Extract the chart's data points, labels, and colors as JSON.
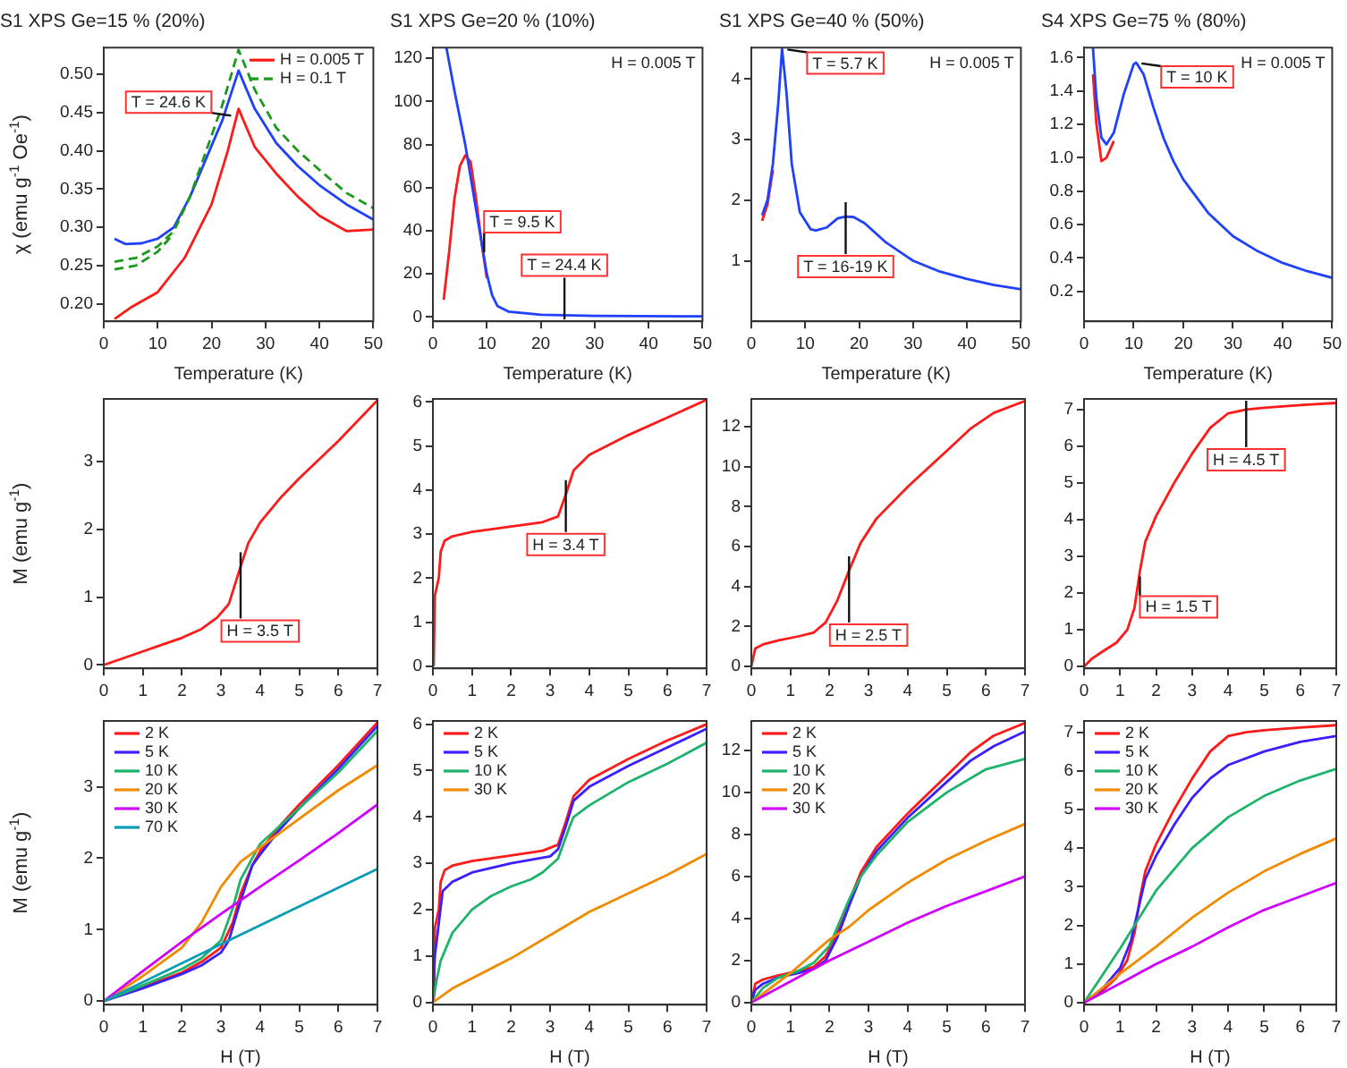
{
  "chart_data": [
    {
      "type": "line",
      "title": "S1 XPS Ge=15 % (20%)",
      "xlabel": "Temperature (K)",
      "ylabel": "χ (emu g$^{-1}$ Oe$^{-1}$)",
      "xlim": [
        0,
        50
      ],
      "xticks": [
        0,
        10,
        20,
        30,
        40,
        50
      ],
      "ylim": [
        0.177,
        0.535
      ],
      "yticks": [
        {
          "value": 0.2,
          "label": "0.20"
        },
        0.25,
        {
          "value": 0.3,
          "label": "0.30"
        },
        0.35,
        {
          "value": 0.4,
          "label": "0.40"
        },
        0.45,
        {
          "value": 0.5,
          "label": "0.50"
        }
      ],
      "grid": false,
      "legend": "top right",
      "annotations": [
        {
          "text": "T = 24.6 K",
          "x": 24.6,
          "y": 0.445
        }
      ],
      "series": [
        {
          "name": "H = 0.005 T",
          "color": "#ff1a1a",
          "x": [
            2,
            5,
            10,
            15,
            20,
            23,
            25,
            28,
            32,
            36,
            40,
            45,
            50
          ],
          "values": [
            0.18,
            0.195,
            0.215,
            0.26,
            0.33,
            0.4,
            0.455,
            0.405,
            0.37,
            0.34,
            0.315,
            0.295,
            0.297
          ]
        },
        {
          "color": "#2040ff",
          "x": [
            2,
            4,
            7,
            10,
            13,
            16,
            19,
            22,
            25,
            28,
            32,
            36,
            40,
            45,
            50
          ],
          "values": [
            0.285,
            0.278,
            0.279,
            0.285,
            0.3,
            0.34,
            0.39,
            0.44,
            0.505,
            0.455,
            0.41,
            0.38,
            0.355,
            0.33,
            0.31
          ]
        },
        {
          "name": "H = 0.1 T",
          "color": "#1a9a1a",
          "line_style": "dashed",
          "x": [
            2,
            6,
            10,
            13,
            16,
            19,
            22,
            25,
            28,
            32,
            36,
            40,
            45,
            50
          ],
          "values": [
            0.255,
            0.26,
            0.275,
            0.295,
            0.34,
            0.4,
            0.46,
            0.532,
            0.48,
            0.43,
            0.4,
            0.375,
            0.345,
            0.325
          ]
        },
        {
          "color": "#1a9a1a",
          "line_style": "dashed",
          "x": [
            2,
            6,
            10,
            13
          ],
          "values": [
            0.245,
            0.25,
            0.268,
            0.292
          ]
        }
      ]
    },
    {
      "type": "line",
      "title": "S1 XPS Ge=20 % (10%)",
      "xlabel": "Temperature (K)",
      "xlim": [
        0,
        50
      ],
      "xticks": [
        0,
        10,
        20,
        30,
        40,
        50
      ],
      "ylim": [
        -2,
        125
      ],
      "yticks": [
        0,
        20,
        40,
        60,
        80,
        100,
        120
      ],
      "grid": false,
      "annotations": [
        "H = 0.005 T",
        {
          "text": "T = 9.5 K",
          "x": 9.5,
          "y": 27.5
        },
        {
          "text": "T = 24.4 K",
          "x": 24.4,
          "y": 0.8
        }
      ],
      "series": [
        {
          "color": "#ff1a1a",
          "x": [
            2,
            3,
            4,
            5,
            6,
            7,
            8,
            9,
            10
          ],
          "values": [
            8,
            30,
            55,
            70,
            75,
            72,
            55,
            35,
            18
          ]
        },
        {
          "color": "#2040ff",
          "x": [
            2.5,
            4,
            6,
            8,
            9,
            10,
            11,
            12,
            14,
            20,
            30,
            50
          ],
          "values": [
            125,
            105,
            80,
            50,
            35,
            20,
            10,
            5,
            2.5,
            1,
            0.5,
            0.3
          ]
        }
      ]
    },
    {
      "type": "line",
      "title": "S1 XPS Ge=40 % (50%)",
      "xlabel": "Temperature (K)",
      "xlim": [
        0,
        50
      ],
      "xticks": [
        0,
        10,
        20,
        30,
        40,
        50
      ],
      "ylim": [
        0,
        4.52
      ],
      "yticks": [
        1,
        2,
        3,
        4
      ],
      "grid": false,
      "annotations": [
        "H = 0.005 T",
        {
          "text": "T = 5.7 K",
          "x": 5.7,
          "y": 4.5
        },
        {
          "text": "T = 16-19 K",
          "x": 17.5,
          "y": 1.73
        }
      ],
      "series": [
        {
          "color": "#ff1a1a",
          "x": [
            2,
            3,
            4
          ],
          "values": [
            1.66,
            1.93,
            2.5
          ]
        },
        {
          "color": "#2040ff",
          "x": [
            2,
            3,
            4,
            5,
            5.7,
            6.5,
            7.5,
            9,
            11,
            12,
            14,
            16,
            17.5,
            19,
            21,
            25,
            30,
            35,
            40,
            45,
            50
          ],
          "values": [
            1.75,
            2.0,
            2.6,
            3.6,
            4.5,
            3.8,
            2.6,
            1.8,
            1.52,
            1.5,
            1.55,
            1.7,
            1.73,
            1.72,
            1.62,
            1.3,
            1.0,
            0.82,
            0.7,
            0.6,
            0.53
          ]
        }
      ]
    },
    {
      "type": "line",
      "title": "S4 XPS Ge=75 % (80%)",
      "xlabel": "Temperature (K)",
      "xlim": [
        0,
        50
      ],
      "xticks": [
        0,
        10,
        20,
        30,
        40,
        50
      ],
      "ylim": [
        0.02,
        1.66
      ],
      "yticks": [
        0.2,
        0.4,
        0.6,
        0.8,
        {
          "value": 1,
          "label": "1.0"
        },
        1.2,
        1.4,
        1.6
      ],
      "grid": false,
      "annotations": [
        "H = 0.005 T",
        {
          "text": "T = 10 K",
          "x": 10.5,
          "y": 1.57
        }
      ],
      "series": [
        {
          "color": "#ff1a1a",
          "x": [
            1.8,
            2.5,
            3.5,
            4.5,
            6
          ],
          "values": [
            1.5,
            1.2,
            0.98,
            1.0,
            1.1
          ]
        },
        {
          "color": "#2040ff",
          "x": [
            1.8,
            2.5,
            3.5,
            4.5,
            6,
            8,
            10,
            10.5,
            12,
            14,
            16,
            18,
            20,
            25,
            30,
            35,
            40,
            45,
            50
          ],
          "values": [
            1.66,
            1.35,
            1.12,
            1.08,
            1.15,
            1.38,
            1.56,
            1.57,
            1.5,
            1.3,
            1.12,
            0.98,
            0.87,
            0.67,
            0.53,
            0.44,
            0.37,
            0.32,
            0.28
          ]
        }
      ]
    },
    {
      "type": "line",
      "ylabel": "M (emu g$^{-1}$)",
      "xlim": [
        0,
        7
      ],
      "xticks": [
        0,
        1,
        2,
        3,
        4,
        5,
        6,
        7
      ],
      "ylim": [
        -0.05,
        3.92
      ],
      "yticks": [
        0,
        1,
        2,
        3
      ],
      "grid": false,
      "annotations": [
        {
          "text": "H = 3.5 T",
          "x": 3.5,
          "y": 1.45
        }
      ],
      "series": [
        {
          "color": "#ff1a1a",
          "x": [
            0,
            1,
            1.5,
            2,
            2.5,
            2.9,
            3.2,
            3.5,
            3.7,
            4,
            4.5,
            5,
            6,
            7
          ],
          "values": [
            0,
            0.2,
            0.3,
            0.4,
            0.53,
            0.7,
            0.9,
            1.45,
            1.8,
            2.1,
            2.45,
            2.75,
            3.3,
            3.9
          ]
        }
      ]
    },
    {
      "type": "line",
      "xlim": [
        0,
        7
      ],
      "xticks": [
        0,
        1,
        2,
        3,
        4,
        5,
        6,
        7
      ],
      "ylim": [
        -0.05,
        6.07
      ],
      "yticks": [
        0,
        1,
        2,
        3,
        4,
        5,
        6
      ],
      "grid": false,
      "annotations": [
        {
          "text": "H = 3.4 T",
          "x": 3.4,
          "y": 3.9
        }
      ],
      "series": [
        {
          "color": "#ff1a1a",
          "x": [
            0.02,
            0.05,
            0.15,
            0.2,
            0.3,
            0.5,
            1,
            2,
            2.8,
            3.2,
            3.4,
            3.6,
            4,
            5,
            6,
            7
          ],
          "values": [
            0,
            1.6,
            2.0,
            2.6,
            2.85,
            2.95,
            3.05,
            3.17,
            3.27,
            3.4,
            3.9,
            4.45,
            4.8,
            5.25,
            5.65,
            6.05
          ]
        }
      ]
    },
    {
      "type": "line",
      "xlim": [
        0,
        7
      ],
      "xticks": [
        0,
        1,
        2,
        3,
        4,
        5,
        6,
        7
      ],
      "ylim": [
        -0.1,
        13.4
      ],
      "yticks": [
        0,
        2,
        4,
        6,
        8,
        10,
        12
      ],
      "grid": false,
      "annotations": [
        {
          "text": "H = 2.5 T",
          "x": 2.5,
          "y": 4.8
        }
      ],
      "series": [
        {
          "color": "#ff1a1a",
          "x": [
            0,
            0.1,
            0.3,
            0.7,
            1.2,
            1.6,
            1.9,
            2.2,
            2.5,
            2.8,
            3.2,
            4,
            5,
            5.6,
            6.2,
            7
          ],
          "values": [
            0,
            0.9,
            1.1,
            1.3,
            1.5,
            1.7,
            2.2,
            3.3,
            4.8,
            6.2,
            7.4,
            9.0,
            10.8,
            11.9,
            12.7,
            13.3
          ]
        }
      ]
    },
    {
      "type": "line",
      "xlim": [
        0,
        7
      ],
      "xticks": [
        0,
        1,
        2,
        3,
        4,
        5,
        6,
        7
      ],
      "ylim": [
        -0.05,
        7.29
      ],
      "yticks": [
        0,
        1,
        2,
        3,
        4,
        5,
        6,
        7
      ],
      "grid": false,
      "annotations": [
        {
          "text": "H = 1.5 T",
          "x": 1.55,
          "y": 2.6
        },
        {
          "text": "H = 4.5 T",
          "x": 4.5,
          "y": 7.0
        }
      ],
      "series": [
        {
          "color": "#ff1a1a",
          "x": [
            0,
            0.2,
            0.5,
            0.9,
            1.2,
            1.4,
            1.55,
            1.7,
            2,
            2.5,
            3,
            3.5,
            4,
            4.5,
            5,
            6,
            7
          ],
          "values": [
            0,
            0.2,
            0.4,
            0.65,
            1.0,
            1.6,
            2.6,
            3.4,
            4.1,
            5.0,
            5.8,
            6.5,
            6.9,
            7.0,
            7.05,
            7.12,
            7.18
          ]
        }
      ]
    },
    {
      "type": "line",
      "xlabel": "H (T)",
      "ylabel": "M (emu g$^{-1}$)",
      "xlim": [
        0,
        7
      ],
      "xticks": [
        0,
        1,
        2,
        3,
        4,
        5,
        6,
        7
      ],
      "ylim": [
        -0.05,
        3.92
      ],
      "yticks": [
        0,
        1,
        2,
        3
      ],
      "grid": false,
      "legend": "top left",
      "series": [
        {
          "name": "2 K",
          "color": "#ff1a1a",
          "x": [
            0,
            1,
            2,
            2.5,
            3,
            3.3,
            3.5,
            3.8,
            4,
            4.5,
            5,
            6,
            7
          ],
          "values": [
            0,
            0.2,
            0.4,
            0.55,
            0.75,
            1.1,
            1.5,
            1.9,
            2.1,
            2.45,
            2.75,
            3.3,
            3.9
          ]
        },
        {
          "name": "5 K",
          "color": "#3a1fff",
          "x": [
            0,
            1,
            2,
            2.5,
            3,
            3.2,
            3.5,
            3.8,
            4,
            4.5,
            5,
            6,
            7
          ],
          "values": [
            0,
            0.18,
            0.38,
            0.5,
            0.68,
            0.85,
            1.4,
            1.9,
            2.05,
            2.4,
            2.7,
            3.25,
            3.85
          ]
        },
        {
          "name": "10 K",
          "color": "#1db36b",
          "x": [
            0,
            1,
            2,
            2.5,
            3,
            3.3,
            3.5,
            3.8,
            4,
            5,
            6,
            7
          ],
          "values": [
            0,
            0.22,
            0.45,
            0.6,
            0.85,
            1.3,
            1.7,
            2.0,
            2.2,
            2.7,
            3.2,
            3.78
          ]
        },
        {
          "name": "20 K",
          "color": "#f08a00",
          "x": [
            0,
            1,
            2,
            2.5,
            3,
            3.5,
            4,
            5,
            6,
            7
          ],
          "values": [
            0,
            0.35,
            0.75,
            1.1,
            1.6,
            1.95,
            2.15,
            2.55,
            2.95,
            3.3
          ]
        },
        {
          "name": "30 K",
          "color": "#d000ff",
          "x": [
            0,
            1,
            2,
            3,
            4,
            5,
            6,
            7
          ],
          "values": [
            0,
            0.42,
            0.83,
            1.22,
            1.6,
            1.97,
            2.35,
            2.75
          ]
        },
        {
          "name": "70 K",
          "color": "#0a9bb5",
          "x": [
            0,
            3.5,
            7
          ],
          "values": [
            0,
            0.93,
            1.85
          ]
        }
      ]
    },
    {
      "type": "line",
      "xlabel": "H (T)",
      "xlim": [
        0,
        7
      ],
      "xticks": [
        0,
        1,
        2,
        3,
        4,
        5,
        6,
        7
      ],
      "ylim": [
        -0.05,
        6.07
      ],
      "yticks": [
        0,
        1,
        2,
        3,
        4,
        5,
        6
      ],
      "grid": false,
      "legend": "top left",
      "series": [
        {
          "name": "2 K",
          "color": "#ff1a1a",
          "x": [
            0.02,
            0.05,
            0.15,
            0.2,
            0.3,
            0.5,
            1,
            2,
            2.8,
            3.2,
            3.4,
            3.6,
            4,
            5,
            6,
            7
          ],
          "values": [
            0,
            1.6,
            2.0,
            2.6,
            2.85,
            2.95,
            3.05,
            3.17,
            3.27,
            3.4,
            3.9,
            4.45,
            4.8,
            5.25,
            5.65,
            6.0
          ]
        },
        {
          "name": "5 K",
          "color": "#3a1fff",
          "x": [
            0,
            0.05,
            0.15,
            0.25,
            0.5,
            1,
            2,
            3,
            3.2,
            3.4,
            3.6,
            4,
            5,
            6,
            7
          ],
          "values": [
            0,
            1.0,
            1.7,
            2.4,
            2.6,
            2.8,
            3.0,
            3.15,
            3.3,
            3.8,
            4.35,
            4.65,
            5.1,
            5.5,
            5.9
          ]
        },
        {
          "name": "10 K",
          "color": "#1db36b",
          "x": [
            0,
            0.1,
            0.2,
            0.5,
            1,
            1.5,
            2,
            2.5,
            2.8,
            3.2,
            3.5,
            3.6,
            4,
            5,
            6,
            7
          ],
          "values": [
            0,
            0.5,
            0.9,
            1.5,
            2.0,
            2.3,
            2.5,
            2.65,
            2.8,
            3.1,
            3.8,
            4.0,
            4.25,
            4.75,
            5.15,
            5.6
          ]
        },
        {
          "name": "30 K",
          "color": "#f08a00",
          "x": [
            0,
            0.5,
            1,
            2,
            3,
            4,
            5,
            6,
            7
          ],
          "values": [
            0,
            0.3,
            0.52,
            0.95,
            1.45,
            1.95,
            2.35,
            2.75,
            3.2
          ]
        }
      ]
    },
    {
      "type": "line",
      "xlabel": "H (T)",
      "xlim": [
        0,
        7
      ],
      "xticks": [
        0,
        1,
        2,
        3,
        4,
        5,
        6,
        7
      ],
      "ylim": [
        -0.1,
        13.4
      ],
      "yticks": [
        0,
        2,
        4,
        6,
        8,
        10,
        12
      ],
      "grid": false,
      "legend": "top left",
      "series": [
        {
          "name": "2 K",
          "color": "#ff1a1a",
          "x": [
            0,
            0.1,
            0.3,
            0.7,
            1.2,
            1.6,
            1.9,
            2.2,
            2.5,
            2.8,
            3.2,
            4,
            5,
            5.6,
            6.2,
            7
          ],
          "values": [
            0,
            0.9,
            1.1,
            1.3,
            1.5,
            1.7,
            2.2,
            3.3,
            4.8,
            6.2,
            7.4,
            9.0,
            10.8,
            11.9,
            12.7,
            13.3
          ]
        },
        {
          "name": "5 K",
          "color": "#3a1fff",
          "x": [
            0,
            0.1,
            0.3,
            0.7,
            1.2,
            1.6,
            1.9,
            2.2,
            2.5,
            2.8,
            3.2,
            4,
            5,
            5.6,
            6.2,
            7
          ],
          "values": [
            0,
            0.6,
            0.9,
            1.2,
            1.4,
            1.6,
            2.0,
            3.1,
            4.6,
            6.0,
            7.2,
            8.8,
            10.5,
            11.5,
            12.2,
            12.9
          ]
        },
        {
          "name": "10 K",
          "color": "#1db36b",
          "x": [
            0,
            0.3,
            0.7,
            1.2,
            1.6,
            2,
            2.5,
            2.8,
            3.2,
            4,
            5,
            6,
            7
          ],
          "values": [
            0,
            0.7,
            1.2,
            1.5,
            1.9,
            2.7,
            4.9,
            6.0,
            7.0,
            8.6,
            10.0,
            11.1,
            11.6
          ]
        },
        {
          "name": "20 K",
          "color": "#f08a00",
          "x": [
            0,
            1,
            2,
            2.5,
            3,
            4,
            5,
            6,
            7
          ],
          "values": [
            0,
            1.4,
            3.0,
            3.6,
            4.4,
            5.7,
            6.8,
            7.7,
            8.5
          ]
        },
        {
          "name": "30 K",
          "color": "#d000ff",
          "x": [
            0,
            1,
            2,
            3,
            4,
            5,
            6,
            7
          ],
          "values": [
            0,
            1.0,
            2.0,
            2.9,
            3.8,
            4.6,
            5.3,
            6.0
          ]
        }
      ]
    },
    {
      "type": "line",
      "xlabel": "H (T)",
      "xlim": [
        0,
        7
      ],
      "xticks": [
        0,
        1,
        2,
        3,
        4,
        5,
        6,
        7
      ],
      "ylim": [
        -0.05,
        7.29
      ],
      "yticks": [
        0,
        1,
        2,
        3,
        4,
        5,
        6,
        7
      ],
      "grid": false,
      "legend": "top left",
      "series": [
        {
          "name": "2 K",
          "color": "#ff1a1a",
          "x": [
            0,
            0.5,
            0.9,
            1.2,
            1.4,
            1.55,
            1.7,
            2,
            2.5,
            3,
            3.5,
            4,
            4.5,
            5,
            6,
            7
          ],
          "values": [
            0,
            0.3,
            0.65,
            1.1,
            1.8,
            2.7,
            3.4,
            4.1,
            5.0,
            5.8,
            6.5,
            6.9,
            7.0,
            7.05,
            7.12,
            7.18
          ]
        },
        {
          "name": "5 K",
          "color": "#3a1fff",
          "x": [
            0,
            0.5,
            1,
            1.3,
            1.5,
            1.7,
            2,
            2.5,
            3,
            3.5,
            4,
            5,
            6,
            7
          ],
          "values": [
            0,
            0.35,
            0.9,
            1.6,
            2.4,
            3.2,
            3.8,
            4.6,
            5.3,
            5.8,
            6.15,
            6.5,
            6.75,
            6.9
          ]
        },
        {
          "name": "10 K",
          "color": "#1db36b",
          "x": [
            0,
            0.5,
            1,
            1.5,
            2,
            3,
            4,
            5,
            6,
            7
          ],
          "values": [
            0,
            0.7,
            1.4,
            2.15,
            2.9,
            4.0,
            4.8,
            5.35,
            5.75,
            6.05
          ]
        },
        {
          "name": "20 K",
          "color": "#f08a00",
          "x": [
            0,
            1,
            2,
            3,
            4,
            5,
            6,
            7
          ],
          "values": [
            0,
            0.75,
            1.45,
            2.2,
            2.85,
            3.4,
            3.85,
            4.25
          ]
        },
        {
          "name": "30 K",
          "color": "#d000ff",
          "x": [
            0,
            1,
            2,
            3,
            4,
            5,
            6,
            7
          ],
          "values": [
            0,
            0.5,
            1.0,
            1.45,
            1.95,
            2.4,
            2.75,
            3.1
          ]
        }
      ]
    }
  ]
}
